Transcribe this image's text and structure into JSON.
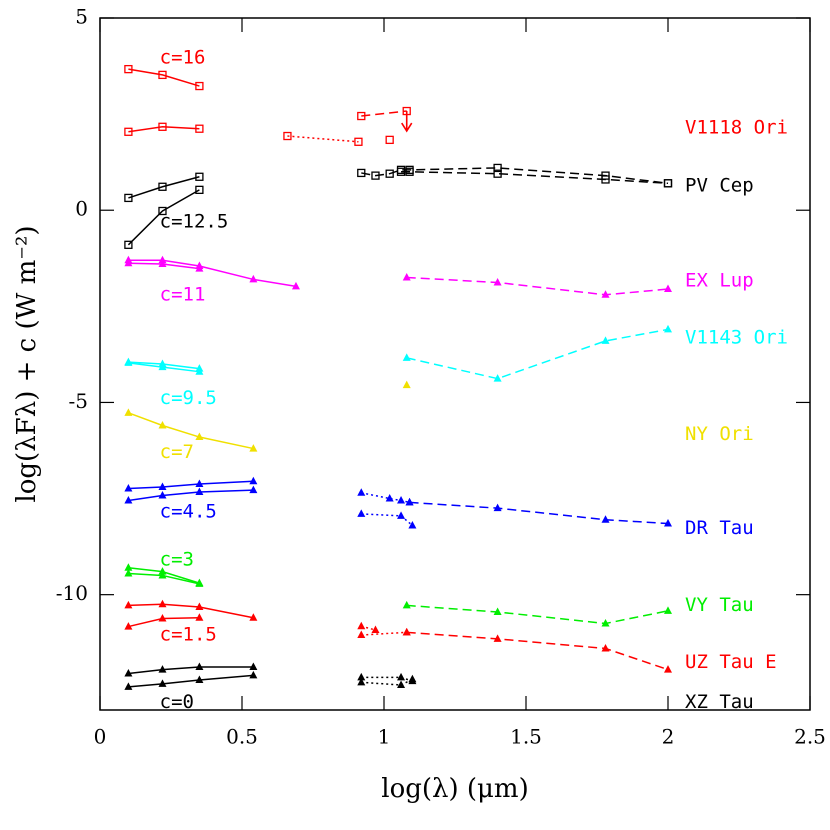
{
  "chart_data": {
    "type": "sed",
    "x_label": "log(λ)  (μm)",
    "y_label": "log(λFλ) + c  (W m⁻²)",
    "xlim": [
      0,
      2.5
    ],
    "ylim": [
      -13,
      5
    ],
    "xticks": [
      0,
      0.5,
      1,
      1.5,
      2,
      2.5
    ],
    "yticks": [
      5,
      0,
      -5,
      -10
    ],
    "series": [
      {
        "color": "#ff0000",
        "style": "solid",
        "marker": "square",
        "x": [
          0.1,
          0.22,
          0.35
        ],
        "values": [
          3.67,
          3.52,
          3.23
        ]
      },
      {
        "color": "#ff0000",
        "style": "solid",
        "marker": "square",
        "x": [
          0.1,
          0.22,
          0.35
        ],
        "values": [
          2.04,
          2.17,
          2.12
        ]
      },
      {
        "color": "#ff0000",
        "style": "dotted",
        "marker": "square",
        "x": [
          0.66,
          0.91
        ],
        "values": [
          1.93,
          1.78
        ]
      },
      {
        "color": "#ff0000",
        "style": "dashed",
        "marker": "square",
        "x": [
          0.92,
          1.08
        ],
        "values": [
          2.45,
          2.58
        ]
      },
      {
        "color": "#ff0000",
        "style": "none",
        "marker": "square",
        "x": [
          1.02
        ],
        "values": [
          1.83
        ]
      },
      {
        "color": "#000000",
        "style": "solid",
        "marker": "square",
        "x": [
          0.1,
          0.22,
          0.35
        ],
        "values": [
          0.32,
          0.61,
          0.87
        ]
      },
      {
        "color": "#000000",
        "style": "solid",
        "marker": "square",
        "x": [
          0.1,
          0.22,
          0.35
        ],
        "values": [
          -0.9,
          -0.02,
          0.53
        ]
      },
      {
        "color": "#000000",
        "style": "dashed",
        "marker": "square",
        "x": [
          0.92,
          0.97,
          1.02,
          1.06,
          1.09,
          1.4,
          1.78,
          2.0
        ],
        "values": [
          0.97,
          0.9,
          0.95,
          1.05,
          1.05,
          1.1,
          0.9,
          0.7
        ]
      },
      {
        "color": "#000000",
        "style": "dashed",
        "marker": "square",
        "x": [
          1.06,
          1.09,
          1.4,
          1.78,
          2.0
        ],
        "values": [
          1.0,
          1.0,
          0.95,
          0.8,
          0.7
        ]
      },
      {
        "color": "#ff00ff",
        "style": "solid",
        "marker": "triangle",
        "x": [
          0.1,
          0.22,
          0.35,
          0.54,
          0.69
        ],
        "values": [
          -1.3,
          -1.3,
          -1.45,
          -1.8,
          -1.98
        ]
      },
      {
        "color": "#ff00ff",
        "style": "solid",
        "marker": "triangle",
        "x": [
          0.1,
          0.22,
          0.35
        ],
        "values": [
          -1.38,
          -1.4,
          -1.52
        ]
      },
      {
        "color": "#ff00ff",
        "style": "dashed",
        "marker": "triangle",
        "x": [
          1.08,
          1.4,
          1.78,
          2.0
        ],
        "values": [
          -1.75,
          -1.88,
          -2.2,
          -2.05
        ]
      },
      {
        "color": "#00ffff",
        "style": "solid",
        "marker": "triangle",
        "x": [
          0.1,
          0.22,
          0.35
        ],
        "values": [
          -3.95,
          -4.0,
          -4.12
        ]
      },
      {
        "color": "#00ffff",
        "style": "solid",
        "marker": "triangle",
        "x": [
          0.1,
          0.22,
          0.35
        ],
        "values": [
          -3.97,
          -4.08,
          -4.2
        ]
      },
      {
        "color": "#00ffff",
        "style": "dashed",
        "marker": "triangle",
        "x": [
          1.08,
          1.4,
          1.78,
          2.0
        ],
        "values": [
          -3.84,
          -4.38,
          -3.4,
          -3.1
        ]
      },
      {
        "color": "#f0e000",
        "style": "solid",
        "marker": "triangle",
        "x": [
          0.1,
          0.22,
          0.35,
          0.54
        ],
        "values": [
          -5.27,
          -5.6,
          -5.9,
          -6.2
        ]
      },
      {
        "color": "#f0e000",
        "style": "none",
        "marker": "triangle",
        "x": [
          1.08
        ],
        "values": [
          -4.55
        ]
      },
      {
        "color": "#0000ff",
        "style": "solid",
        "marker": "triangle",
        "x": [
          0.1,
          0.22,
          0.35,
          0.54
        ],
        "values": [
          -7.24,
          -7.2,
          -7.12,
          -7.05
        ]
      },
      {
        "color": "#0000ff",
        "style": "solid",
        "marker": "triangle",
        "x": [
          0.1,
          0.22,
          0.35,
          0.54
        ],
        "values": [
          -7.55,
          -7.42,
          -7.33,
          -7.28
        ]
      },
      {
        "color": "#0000ff",
        "style": "dotted",
        "marker": "triangle",
        "x": [
          0.92,
          1.02,
          1.06,
          1.09
        ],
        "values": [
          -7.35,
          -7.5,
          -7.55,
          -7.6
        ]
      },
      {
        "color": "#0000ff",
        "style": "dashed",
        "marker": "triangle",
        "x": [
          1.09,
          1.4,
          1.78,
          2.0
        ],
        "values": [
          -7.6,
          -7.75,
          -8.05,
          -8.15
        ]
      },
      {
        "color": "#0000ff",
        "style": "dotted",
        "marker": "triangle",
        "x": [
          0.92,
          1.06,
          1.1
        ],
        "values": [
          -7.9,
          -7.95,
          -8.2
        ]
      },
      {
        "color": "#00ee00",
        "style": "solid",
        "marker": "triangle",
        "x": [
          0.1,
          0.22,
          0.35
        ],
        "values": [
          -9.3,
          -9.4,
          -9.7
        ]
      },
      {
        "color": "#00ee00",
        "style": "solid",
        "marker": "triangle",
        "x": [
          0.1,
          0.22,
          0.35
        ],
        "values": [
          -9.45,
          -9.5,
          -9.72
        ]
      },
      {
        "color": "#00ee00",
        "style": "dashed",
        "marker": "triangle",
        "x": [
          1.08,
          1.4,
          1.78,
          2.0
        ],
        "values": [
          -10.28,
          -10.45,
          -10.75,
          -10.42
        ]
      },
      {
        "color": "#ff0000",
        "style": "solid",
        "marker": "triangle",
        "x": [
          0.1,
          0.22,
          0.35,
          0.54
        ],
        "values": [
          -10.28,
          -10.25,
          -10.32,
          -10.6
        ]
      },
      {
        "color": "#ff0000",
        "style": "solid",
        "marker": "triangle",
        "x": [
          0.1,
          0.22,
          0.35
        ],
        "values": [
          -10.83,
          -10.62,
          -10.6
        ]
      },
      {
        "color": "#ff0000",
        "style": "dotted",
        "marker": "triangle",
        "x": [
          0.92,
          0.97
        ],
        "values": [
          -10.82,
          -10.92
        ]
      },
      {
        "color": "#ff0000",
        "style": "dotted",
        "marker": "triangle",
        "x": [
          0.92,
          1.08
        ],
        "values": [
          -11.05,
          -10.98
        ]
      },
      {
        "color": "#ff0000",
        "style": "dashed",
        "marker": "triangle",
        "x": [
          1.08,
          1.4,
          1.78,
          2.0
        ],
        "values": [
          -10.98,
          -11.15,
          -11.4,
          -11.95
        ]
      },
      {
        "color": "#000000",
        "style": "solid",
        "marker": "triangle",
        "x": [
          0.1,
          0.22,
          0.35,
          0.54
        ],
        "values": [
          -12.05,
          -11.95,
          -11.88,
          -11.88
        ]
      },
      {
        "color": "#000000",
        "style": "solid",
        "marker": "triangle",
        "x": [
          0.1,
          0.22,
          0.35,
          0.54
        ],
        "values": [
          -12.4,
          -12.32,
          -12.22,
          -12.1
        ]
      },
      {
        "color": "#000000",
        "style": "dotted",
        "marker": "triangle",
        "x": [
          0.92,
          1.06,
          1.1
        ],
        "values": [
          -12.15,
          -12.15,
          -12.25
        ]
      },
      {
        "color": "#000000",
        "style": "dotted",
        "marker": "triangle",
        "x": [
          0.92,
          1.06,
          1.1
        ],
        "values": [
          -12.28,
          -12.35,
          -12.2
        ]
      }
    ],
    "upper_limits": [
      {
        "x": 1.08,
        "y": 2.58,
        "color": "#ff0000"
      }
    ],
    "annotations": [
      {
        "text": "c=16",
        "x": 0.21,
        "y": 3.96,
        "color": "#ff0000"
      },
      {
        "text": "c=12.5",
        "x": 0.21,
        "y": -0.3,
        "color": "#000000"
      },
      {
        "text": "c=11",
        "x": 0.21,
        "y": -2.2,
        "color": "#ff00ff"
      },
      {
        "text": "c=9.5",
        "x": 0.21,
        "y": -4.9,
        "color": "#00ffff"
      },
      {
        "text": "c=7",
        "x": 0.21,
        "y": -6.3,
        "color": "#f0e000"
      },
      {
        "text": "c=4.5",
        "x": 0.21,
        "y": -7.85,
        "color": "#0000ff"
      },
      {
        "text": "c=3",
        "x": 0.21,
        "y": -9.1,
        "color": "#00ee00"
      },
      {
        "text": "c=1.5",
        "x": 0.21,
        "y": -11.05,
        "color": "#ff0000"
      },
      {
        "text": "c=0",
        "x": 0.21,
        "y": -12.8,
        "color": "#000000"
      },
      {
        "text": "V1118 Ori",
        "x": 2.06,
        "y": 2.14,
        "color": "#ff0000"
      },
      {
        "text": "PV Cep",
        "x": 2.06,
        "y": 0.63,
        "color": "#000000"
      },
      {
        "text": "EX Lup",
        "x": 2.06,
        "y": -1.84,
        "color": "#ff00ff"
      },
      {
        "text": "V1143 Ori",
        "x": 2.06,
        "y": -3.32,
        "color": "#00ffff"
      },
      {
        "text": "NY Ori",
        "x": 2.06,
        "y": -5.84,
        "color": "#f0e000"
      },
      {
        "text": "DR Tau",
        "x": 2.06,
        "y": -8.28,
        "color": "#0000ff"
      },
      {
        "text": "VY Tau",
        "x": 2.06,
        "y": -10.28,
        "color": "#00ee00"
      },
      {
        "text": "UZ Tau E",
        "x": 2.06,
        "y": -11.77,
        "color": "#ff0000"
      },
      {
        "text": "XZ Tau",
        "x": 2.06,
        "y": -12.8,
        "color": "#000000"
      }
    ]
  }
}
